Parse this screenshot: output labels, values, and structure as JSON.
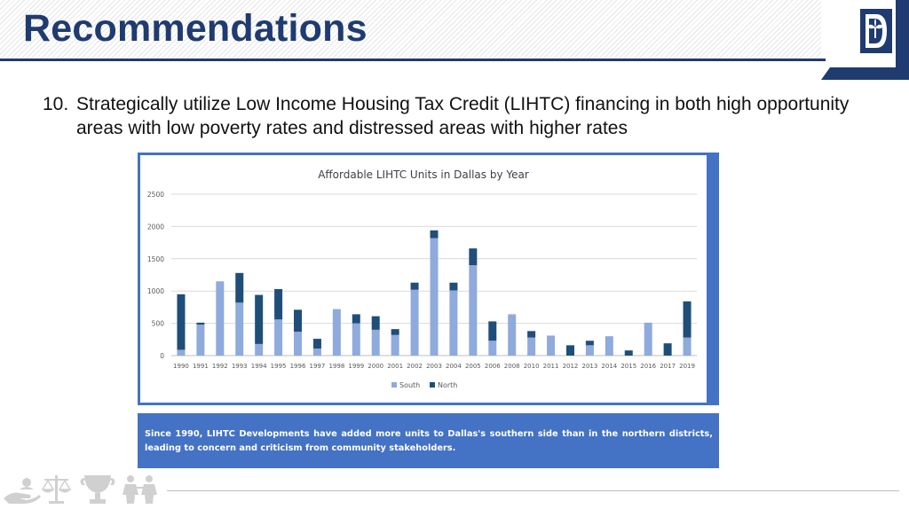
{
  "header": {
    "title": "Recommendations"
  },
  "recommendation": {
    "number": "10.",
    "text": "Strategically utilize Low Income Housing Tax Credit (LIHTC) financing in both high opportunity areas with low poverty rates and distressed areas with higher rates"
  },
  "chart_data": {
    "type": "bar",
    "stacked": true,
    "title": "Affordable LIHTC Units in Dallas by Year",
    "xlabel": "",
    "ylabel": "",
    "ylim": [
      0,
      2500
    ],
    "yticks": [
      0,
      500,
      1000,
      1500,
      2000,
      2500
    ],
    "grid": true,
    "legend_position": "bottom",
    "categories": [
      "1990",
      "1991",
      "1992",
      "1993",
      "1994",
      "1995",
      "1996",
      "1997",
      "1998",
      "1999",
      "2000",
      "2001",
      "2002",
      "2003",
      "2004",
      "2005",
      "2006",
      "2008",
      "2010",
      "2011",
      "2012",
      "2013",
      "2014",
      "2015",
      "2016",
      "2017",
      "2019"
    ],
    "series": [
      {
        "name": "South",
        "color": "#8faadc",
        "values": [
          90,
          480,
          1150,
          820,
          180,
          560,
          370,
          110,
          720,
          500,
          400,
          320,
          1020,
          1820,
          1010,
          1400,
          230,
          640,
          280,
          310,
          0,
          160,
          300,
          0,
          510,
          0,
          280
        ]
      },
      {
        "name": "North",
        "color": "#1f4e79",
        "values": [
          860,
          30,
          0,
          460,
          760,
          470,
          340,
          150,
          0,
          140,
          210,
          90,
          110,
          120,
          120,
          260,
          300,
          0,
          100,
          0,
          160,
          70,
          0,
          80,
          0,
          190,
          560
        ]
      }
    ]
  },
  "note": {
    "text": "Since 1990, LIHTC Developments have added more units to Dallas's southern side than in the northern districts, leading to concern and criticism from community stakeholders."
  },
  "icons": [
    "dallas-logo-icon",
    "hand-icon",
    "scales-icon",
    "trophy-icon",
    "people-icon"
  ]
}
